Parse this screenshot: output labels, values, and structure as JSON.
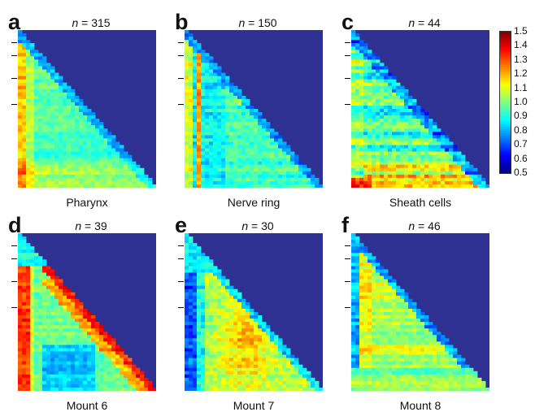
{
  "panels": [
    {
      "letter": "a",
      "n_prefix": "n",
      "n_value": "= 315",
      "caption": "Pharynx",
      "profile": "pharynx"
    },
    {
      "letter": "b",
      "n_prefix": "n",
      "n_value": "= 150",
      "caption": "Nerve ring",
      "profile": "nerve"
    },
    {
      "letter": "c",
      "n_prefix": "n",
      "n_value": "= 44",
      "caption": "Sheath cells",
      "profile": "sheath"
    },
    {
      "letter": "d",
      "n_prefix": "n",
      "n_value": "= 39",
      "caption": "Mount 6",
      "profile": "mount6"
    },
    {
      "letter": "e",
      "n_prefix": "n",
      "n_value": "= 30",
      "caption": "Mount 7",
      "profile": "mount7"
    },
    {
      "letter": "f",
      "n_prefix": "n",
      "n_value": "= 46",
      "caption": "Mount 8",
      "profile": "mount8"
    }
  ],
  "colorbar": {
    "ticks": [
      "1.5",
      "1.4",
      "1.3",
      "1.2",
      "1.1",
      "1.0",
      "0.9",
      "0.8",
      "0.7",
      "0.6",
      "0.5"
    ],
    "min": 0.5,
    "max": 1.5,
    "colormap": "jet"
  },
  "colors": {
    "masked_region": "#2e3191",
    "background": "#ffffff"
  }
}
